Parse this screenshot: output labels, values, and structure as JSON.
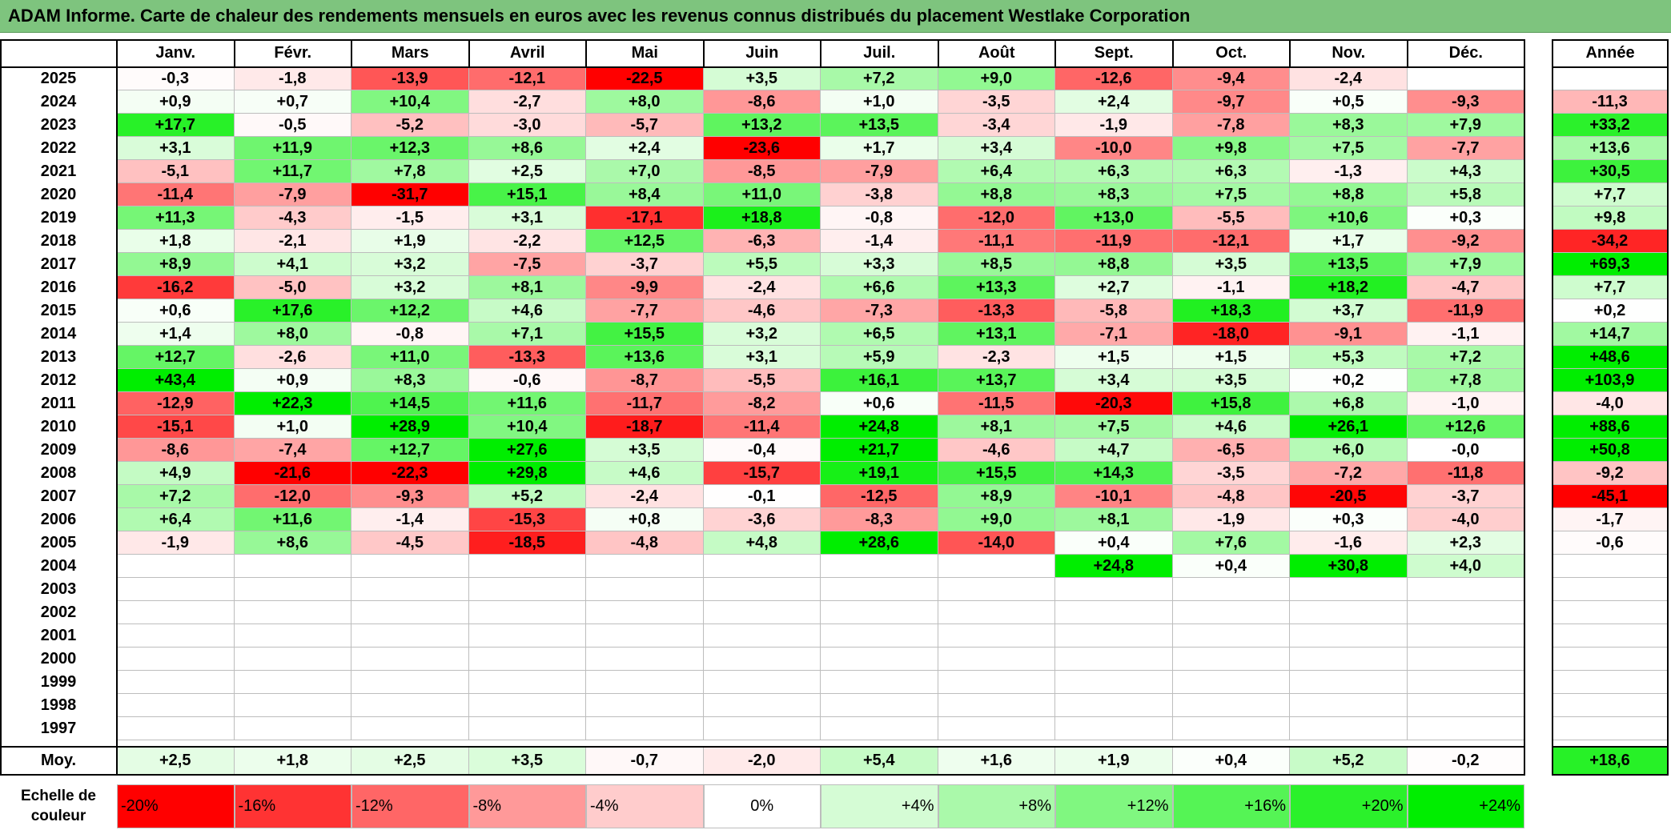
{
  "title": "ADAM Informe. Carte de chaleur des rendements mensuels en euros avec les revenus connus distribués du placement Westlake Corporation",
  "chart_data": {
    "type": "heatmap",
    "months": [
      "Janv.",
      "Févr.",
      "Mars",
      "Avril",
      "Mai",
      "Juin",
      "Juil.",
      "Août",
      "Sept.",
      "Oct.",
      "Nov.",
      "Déc."
    ],
    "year_header": "Année",
    "rows": [
      {
        "year": "2025",
        "values": [
          "-0,3",
          "-1,8",
          "-13,9",
          "-12,1",
          "-22,5",
          "+3,5",
          "+7,2",
          "+9,0",
          "-12,6",
          "-9,4",
          "-2,4",
          ""
        ],
        "annual": ""
      },
      {
        "year": "2024",
        "values": [
          "+0,9",
          "+0,7",
          "+10,4",
          "-2,7",
          "+8,0",
          "-8,6",
          "+1,0",
          "-3,5",
          "+2,4",
          "-9,7",
          "+0,5",
          "-9,3"
        ],
        "annual": "-11,3"
      },
      {
        "year": "2023",
        "values": [
          "+17,7",
          "-0,5",
          "-5,2",
          "-3,0",
          "-5,7",
          "+13,2",
          "+13,5",
          "-3,4",
          "-1,9",
          "-7,8",
          "+8,3",
          "+7,9"
        ],
        "annual": "+33,2"
      },
      {
        "year": "2022",
        "values": [
          "+3,1",
          "+11,9",
          "+12,3",
          "+8,6",
          "+2,4",
          "-23,6",
          "+1,7",
          "+3,4",
          "-10,0",
          "+9,8",
          "+7,5",
          "-7,7"
        ],
        "annual": "+13,6"
      },
      {
        "year": "2021",
        "values": [
          "-5,1",
          "+11,7",
          "+7,8",
          "+2,5",
          "+7,0",
          "-8,5",
          "-7,9",
          "+6,4",
          "+6,3",
          "+6,3",
          "-1,3",
          "+4,3"
        ],
        "annual": "+30,5"
      },
      {
        "year": "2020",
        "values": [
          "-11,4",
          "-7,9",
          "-31,7",
          "+15,1",
          "+8,4",
          "+11,0",
          "-3,8",
          "+8,8",
          "+8,3",
          "+7,5",
          "+8,8",
          "+5,8"
        ],
        "annual": "+7,7"
      },
      {
        "year": "2019",
        "values": [
          "+11,3",
          "-4,3",
          "-1,5",
          "+3,1",
          "-17,1",
          "+18,8",
          "-0,8",
          "-12,0",
          "+13,0",
          "-5,5",
          "+10,6",
          "+0,3"
        ],
        "annual": "+9,8"
      },
      {
        "year": "2018",
        "values": [
          "+1,8",
          "-2,1",
          "+1,9",
          "-2,2",
          "+12,5",
          "-6,3",
          "-1,4",
          "-11,1",
          "-11,9",
          "-12,1",
          "+1,7",
          "-9,2"
        ],
        "annual": "-34,2"
      },
      {
        "year": "2017",
        "values": [
          "+8,9",
          "+4,1",
          "+3,2",
          "-7,5",
          "-3,7",
          "+5,5",
          "+3,3",
          "+8,5",
          "+8,8",
          "+3,5",
          "+13,5",
          "+7,9"
        ],
        "annual": "+69,3"
      },
      {
        "year": "2016",
        "values": [
          "-16,2",
          "-5,0",
          "+3,2",
          "+8,1",
          "-9,9",
          "-2,4",
          "+6,6",
          "+13,3",
          "+2,7",
          "-1,1",
          "+18,2",
          "-4,7"
        ],
        "annual": "+7,7"
      },
      {
        "year": "2015",
        "values": [
          "+0,6",
          "+17,6",
          "+12,2",
          "+4,6",
          "-7,7",
          "-4,6",
          "-7,3",
          "-13,3",
          "-5,8",
          "+18,3",
          "+3,7",
          "-11,9"
        ],
        "annual": "+0,2"
      },
      {
        "year": "2014",
        "values": [
          "+1,4",
          "+8,0",
          "-0,8",
          "+7,1",
          "+15,5",
          "+3,2",
          "+6,5",
          "+13,1",
          "-7,1",
          "-18,0",
          "-9,1",
          "-1,1"
        ],
        "annual": "+14,7"
      },
      {
        "year": "2013",
        "values": [
          "+12,7",
          "-2,6",
          "+11,0",
          "-13,3",
          "+13,6",
          "+3,1",
          "+5,9",
          "-2,3",
          "+1,5",
          "+1,5",
          "+5,3",
          "+7,2"
        ],
        "annual": "+48,6"
      },
      {
        "year": "2012",
        "values": [
          "+43,4",
          "+0,9",
          "+8,3",
          "-0,6",
          "-8,7",
          "-5,5",
          "+16,1",
          "+13,7",
          "+3,4",
          "+3,5",
          "+0,2",
          "+7,8"
        ],
        "annual": "+103,9"
      },
      {
        "year": "2011",
        "values": [
          "-12,9",
          "+22,3",
          "+14,5",
          "+11,6",
          "-11,7",
          "-8,2",
          "+0,6",
          "-11,5",
          "-20,3",
          "+15,8",
          "+6,8",
          "-1,0"
        ],
        "annual": "-4,0"
      },
      {
        "year": "2010",
        "values": [
          "-15,1",
          "+1,0",
          "+28,9",
          "+10,4",
          "-18,7",
          "-11,4",
          "+24,8",
          "+8,1",
          "+7,5",
          "+4,6",
          "+26,1",
          "+12,6"
        ],
        "annual": "+88,6"
      },
      {
        "year": "2009",
        "values": [
          "-8,6",
          "-7,4",
          "+12,7",
          "+27,6",
          "+3,5",
          "-0,4",
          "+21,7",
          "-4,6",
          "+4,7",
          "-6,5",
          "+6,0",
          "-0,0"
        ],
        "annual": "+50,8"
      },
      {
        "year": "2008",
        "values": [
          "+4,9",
          "-21,6",
          "-22,3",
          "+29,8",
          "+4,6",
          "-15,7",
          "+19,1",
          "+15,5",
          "+14,3",
          "-3,5",
          "-7,2",
          "-11,8"
        ],
        "annual": "-9,2"
      },
      {
        "year": "2007",
        "values": [
          "+7,2",
          "-12,0",
          "-9,3",
          "+5,2",
          "-2,4",
          "-0,1",
          "-12,5",
          "+8,9",
          "-10,1",
          "-4,8",
          "-20,5",
          "-3,7"
        ],
        "annual": "-45,1"
      },
      {
        "year": "2006",
        "values": [
          "+6,4",
          "+11,6",
          "-1,4",
          "-15,3",
          "+0,8",
          "-3,6",
          "-8,3",
          "+9,0",
          "+8,1",
          "-1,9",
          "+0,3",
          "-4,0"
        ],
        "annual": "-1,7"
      },
      {
        "year": "2005",
        "values": [
          "-1,9",
          "+8,6",
          "-4,5",
          "-18,5",
          "-4,8",
          "+4,8",
          "+28,6",
          "-14,0",
          "+0,4",
          "+7,6",
          "-1,6",
          "+2,3"
        ],
        "annual": "-0,6"
      },
      {
        "year": "2004",
        "values": [
          "",
          "",
          "",
          "",
          "",
          "",
          "",
          "",
          "+24,8",
          "+0,4",
          "+30,8",
          "+4,0"
        ],
        "annual": ""
      },
      {
        "year": "2003",
        "values": [
          "",
          "",
          "",
          "",
          "",
          "",
          "",
          "",
          "",
          "",
          "",
          ""
        ],
        "annual": ""
      },
      {
        "year": "2002",
        "values": [
          "",
          "",
          "",
          "",
          "",
          "",
          "",
          "",
          "",
          "",
          "",
          ""
        ],
        "annual": ""
      },
      {
        "year": "2001",
        "values": [
          "",
          "",
          "",
          "",
          "",
          "",
          "",
          "",
          "",
          "",
          "",
          ""
        ],
        "annual": ""
      },
      {
        "year": "2000",
        "values": [
          "",
          "",
          "",
          "",
          "",
          "",
          "",
          "",
          "",
          "",
          "",
          ""
        ],
        "annual": ""
      },
      {
        "year": "1999",
        "values": [
          "",
          "",
          "",
          "",
          "",
          "",
          "",
          "",
          "",
          "",
          "",
          ""
        ],
        "annual": ""
      },
      {
        "year": "1998",
        "values": [
          "",
          "",
          "",
          "",
          "",
          "",
          "",
          "",
          "",
          "",
          "",
          ""
        ],
        "annual": ""
      },
      {
        "year": "1997",
        "values": [
          "",
          "",
          "",
          "",
          "",
          "",
          "",
          "",
          "",
          "",
          "",
          ""
        ],
        "annual": ""
      }
    ],
    "average": {
      "label": "Moy.",
      "values": [
        "+2,5",
        "+1,8",
        "+2,5",
        "+3,5",
        "-0,7",
        "-2,0",
        "+5,4",
        "+1,6",
        "+1,9",
        "+0,4",
        "+5,2",
        "-0,2"
      ],
      "annual": "+18,6"
    },
    "color_scale": {
      "label_line1": "Echelle de",
      "label_line2": "couleur",
      "steps": [
        "-20%",
        "-16%",
        "-12%",
        "-8%",
        "-4%",
        "0%",
        "+4%",
        "+8%",
        "+12%",
        "+16%",
        "+20%",
        "+24%"
      ],
      "step_values": [
        -20,
        -16,
        -12,
        -8,
        -4,
        0,
        4,
        8,
        12,
        16,
        20,
        24
      ],
      "negative_color": "#ff0000",
      "positive_color": "#00ee00",
      "neutral_color": "#ffffff"
    }
  }
}
